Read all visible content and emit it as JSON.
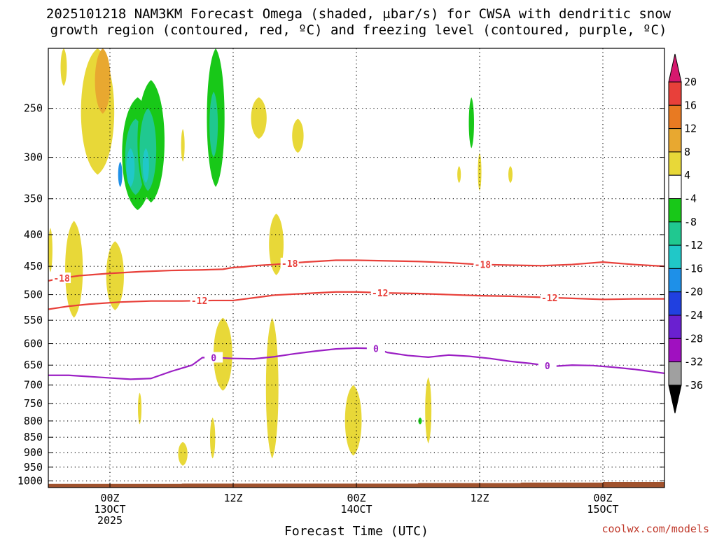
{
  "chart_data": {
    "type": "heatmap",
    "title_line1": "2025101218 NAM3KM Forecast Omega (shaded, μbar/s) for CWSA with dendritic snow",
    "title_line2": "growth region (contoured, red, ºC) and freezing level (contoured, purple, ºC)",
    "xlabel": "Forecast Time (UTC)",
    "credit": "coolwx.com/models",
    "x_ticks": [
      {
        "hour": 6,
        "lines": [
          "00Z",
          "13OCT",
          "2025"
        ]
      },
      {
        "hour": 18,
        "lines": [
          "12Z"
        ]
      },
      {
        "hour": 30,
        "lines": [
          "00Z",
          "14OCT"
        ]
      },
      {
        "hour": 42,
        "lines": [
          "12Z"
        ]
      },
      {
        "hour": 54,
        "lines": [
          "00Z",
          "15OCT"
        ]
      }
    ],
    "xlim": [
      0,
      60
    ],
    "ylim_hpa": [
      1025,
      200
    ],
    "y_ticks": [
      250,
      300,
      350,
      400,
      450,
      500,
      550,
      600,
      650,
      700,
      750,
      800,
      850,
      900,
      950,
      1000
    ],
    "colorbar": {
      "labels": [
        "20",
        "16",
        "12",
        "8",
        "4",
        "-4",
        "-8",
        "-12",
        "-16",
        "-20",
        "-24",
        "-28",
        "-32",
        "-36"
      ],
      "colors": [
        "#d6186e",
        "#e8403a",
        "#e87a22",
        "#e8a830",
        "#e8d838",
        "#ffffff",
        "#18c818",
        "#20c890",
        "#20c8c8",
        "#1e90e8",
        "#2040e0",
        "#6a20d0",
        "#a010c0",
        "#a0a0a0",
        "#000000"
      ]
    },
    "contours": [
      {
        "name": "-18C isotherm",
        "color": "#e8403a",
        "label": "-18",
        "points": [
          [
            0,
            475
          ],
          [
            1,
            471
          ],
          [
            3,
            466
          ],
          [
            6,
            462
          ],
          [
            9,
            459
          ],
          [
            12,
            457
          ],
          [
            15,
            456
          ],
          [
            17,
            455
          ],
          [
            18,
            452
          ],
          [
            19,
            451
          ],
          [
            20,
            449
          ],
          [
            22,
            447
          ],
          [
            25,
            443
          ],
          [
            28,
            440
          ],
          [
            30,
            440
          ],
          [
            33,
            441
          ],
          [
            36,
            442
          ],
          [
            39,
            444
          ],
          [
            42,
            447
          ],
          [
            45,
            448
          ],
          [
            48,
            449
          ],
          [
            51,
            447
          ],
          [
            54,
            443
          ],
          [
            57,
            447
          ],
          [
            60,
            450
          ]
        ],
        "label_hours": [
          1.3,
          23.5,
          42.3
        ]
      },
      {
        "name": "-12C isotherm",
        "color": "#e8403a",
        "label": "-12",
        "points": [
          [
            0,
            528
          ],
          [
            2,
            522
          ],
          [
            4,
            518
          ],
          [
            7,
            514
          ],
          [
            10,
            512
          ],
          [
            13,
            512
          ],
          [
            16,
            511
          ],
          [
            18,
            511
          ],
          [
            20,
            506
          ],
          [
            22,
            501
          ],
          [
            25,
            498
          ],
          [
            28,
            495
          ],
          [
            30,
            495
          ],
          [
            33,
            497
          ],
          [
            36,
            498
          ],
          [
            39,
            500
          ],
          [
            42,
            502
          ],
          [
            45,
            503
          ],
          [
            48,
            505
          ],
          [
            51,
            507
          ],
          [
            54,
            509
          ],
          [
            57,
            508
          ],
          [
            60,
            508
          ]
        ],
        "label_hours": [
          14.7,
          32.3,
          48.8
        ]
      },
      {
        "name": "0C freezing level",
        "color": "#9b1fc4",
        "label": "0",
        "points": [
          [
            0,
            675
          ],
          [
            2,
            675
          ],
          [
            5,
            680
          ],
          [
            8,
            685
          ],
          [
            10,
            683
          ],
          [
            12,
            665
          ],
          [
            14,
            650
          ],
          [
            15,
            632
          ],
          [
            16,
            632
          ],
          [
            18,
            634
          ],
          [
            20,
            635
          ],
          [
            22,
            630
          ],
          [
            24,
            623
          ],
          [
            26,
            617
          ],
          [
            28,
            612
          ],
          [
            30,
            610
          ],
          [
            32,
            611
          ],
          [
            33,
            620
          ],
          [
            35,
            627
          ],
          [
            37,
            631
          ],
          [
            39,
            626
          ],
          [
            41,
            629
          ],
          [
            43,
            634
          ],
          [
            45,
            641
          ],
          [
            47,
            646
          ],
          [
            49,
            653
          ],
          [
            51,
            650
          ],
          [
            53,
            651
          ],
          [
            55,
            655
          ],
          [
            57,
            660
          ],
          [
            60,
            670
          ]
        ],
        "label_hours": [
          16.1,
          31.9,
          48.6
        ]
      }
    ],
    "omega_blobs": [
      {
        "x": 1.5,
        "p_top": 200,
        "p_bot": 230,
        "w": 0.6,
        "value": 4
      },
      {
        "x": 4.8,
        "p_top": 200,
        "p_bot": 320,
        "w": 3.2,
        "value": 4
      },
      {
        "x": 5.3,
        "p_top": 200,
        "p_bot": 255,
        "w": 1.5,
        "value": 8
      },
      {
        "x": 8.7,
        "p_top": 240,
        "p_bot": 365,
        "w": 3.0,
        "value": -8
      },
      {
        "x": 8.5,
        "p_top": 260,
        "p_bot": 345,
        "w": 2.0,
        "value": -12
      },
      {
        "x": 8.0,
        "p_top": 290,
        "p_bot": 335,
        "w": 0.8,
        "value": -16
      },
      {
        "x": 7.0,
        "p_top": 305,
        "p_bot": 335,
        "w": 0.4,
        "value": -20
      },
      {
        "x": 10.0,
        "p_top": 225,
        "p_bot": 355,
        "w": 2.6,
        "value": -8
      },
      {
        "x": 9.7,
        "p_top": 250,
        "p_bot": 340,
        "w": 1.6,
        "value": -12
      },
      {
        "x": 9.5,
        "p_top": 290,
        "p_bot": 330,
        "w": 0.6,
        "value": -16
      },
      {
        "x": 16.3,
        "p_top": 200,
        "p_bot": 335,
        "w": 1.7,
        "value": -8
      },
      {
        "x": 16.1,
        "p_top": 235,
        "p_bot": 300,
        "w": 0.8,
        "value": -12
      },
      {
        "x": 20.5,
        "p_top": 240,
        "p_bot": 280,
        "w": 1.5,
        "value": 4
      },
      {
        "x": 24.3,
        "p_top": 260,
        "p_bot": 295,
        "w": 1.1,
        "value": 4
      },
      {
        "x": 13.1,
        "p_top": 270,
        "p_bot": 305,
        "w": 0.3,
        "value": 4
      },
      {
        "x": 41.2,
        "p_top": 240,
        "p_bot": 290,
        "w": 0.5,
        "value": -8
      },
      {
        "x": 40.0,
        "p_top": 310,
        "p_bot": 330,
        "w": 0.2,
        "value": 4
      },
      {
        "x": 42.0,
        "p_top": 295,
        "p_bot": 340,
        "w": 0.2,
        "value": 4
      },
      {
        "x": 45.0,
        "p_top": 310,
        "p_bot": 330,
        "w": 0.4,
        "value": 4
      },
      {
        "x": 2.5,
        "p_top": 380,
        "p_bot": 545,
        "w": 1.7,
        "value": 4
      },
      {
        "x": 6.5,
        "p_top": 410,
        "p_bot": 530,
        "w": 1.7,
        "value": 4
      },
      {
        "x": 0.2,
        "p_top": 390,
        "p_bot": 460,
        "w": 0.4,
        "value": 4
      },
      {
        "x": 22.2,
        "p_top": 370,
        "p_bot": 465,
        "w": 1.4,
        "value": 4
      },
      {
        "x": 17.0,
        "p_top": 545,
        "p_bot": 715,
        "w": 1.8,
        "value": 4
      },
      {
        "x": 21.8,
        "p_top": 545,
        "p_bot": 920,
        "w": 1.2,
        "value": 4
      },
      {
        "x": 8.9,
        "p_top": 720,
        "p_bot": 810,
        "w": 0.3,
        "value": 4
      },
      {
        "x": 13.1,
        "p_top": 865,
        "p_bot": 945,
        "w": 0.9,
        "value": 4
      },
      {
        "x": 16.0,
        "p_top": 790,
        "p_bot": 920,
        "w": 0.5,
        "value": 4
      },
      {
        "x": 29.7,
        "p_top": 700,
        "p_bot": 910,
        "w": 1.6,
        "value": 4
      },
      {
        "x": 37.0,
        "p_top": 680,
        "p_bot": 870,
        "w": 0.6,
        "value": 4
      },
      {
        "x": 36.2,
        "p_top": 790,
        "p_bot": 810,
        "w": 0.2,
        "value": -8
      }
    ],
    "terrain": [
      [
        0,
        1011
      ],
      [
        13,
        1011
      ],
      [
        13,
        1010
      ],
      [
        36,
        1010
      ],
      [
        36,
        1008
      ],
      [
        46,
        1008
      ],
      [
        46,
        1006
      ],
      [
        54,
        1006
      ],
      [
        54,
        1004
      ],
      [
        60,
        1004
      ]
    ]
  }
}
